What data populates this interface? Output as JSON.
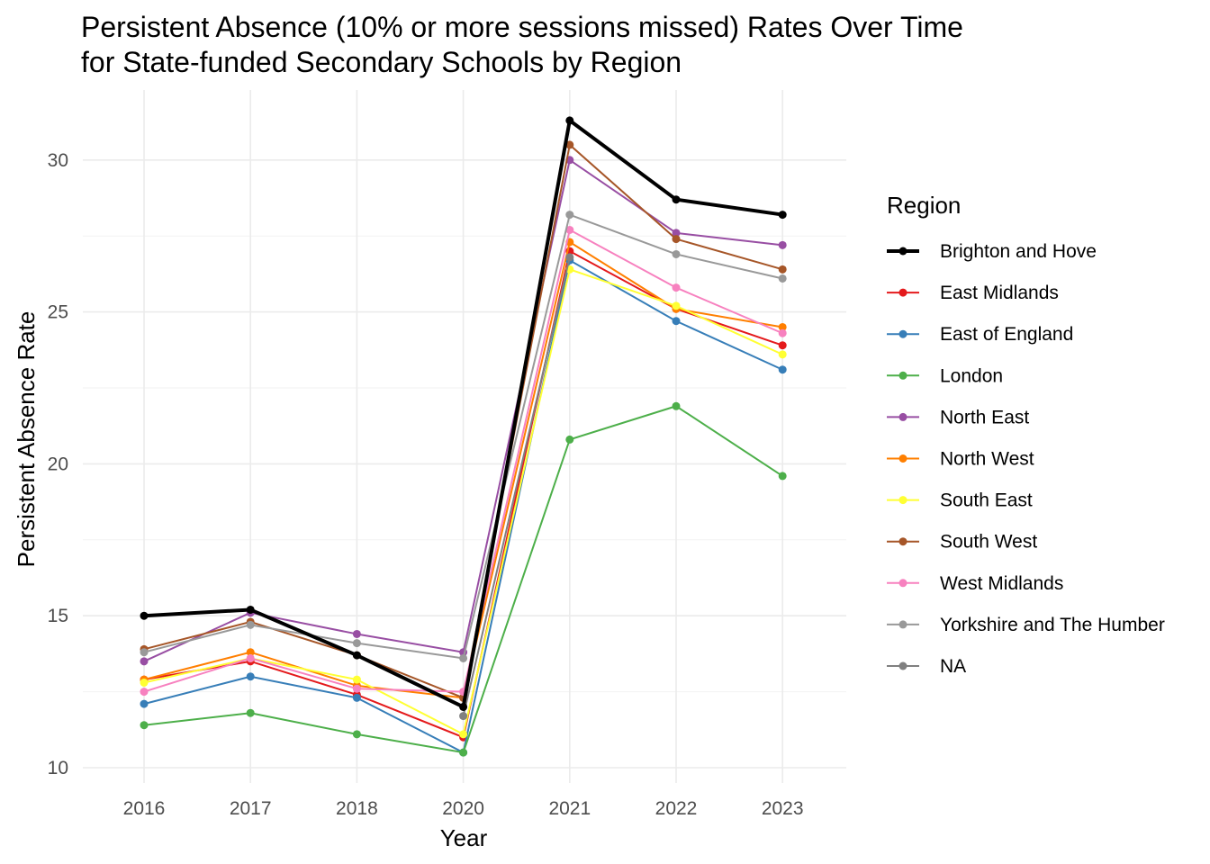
{
  "chart_data": {
    "type": "line",
    "title": [
      "Persistent Absence (10% or more sessions missed) Rates Over Time",
      "for State-funded Secondary Schools by Region"
    ],
    "xlabel": "Year",
    "ylabel": "Persistent Absence Rate",
    "categories": [
      "2016",
      "2017",
      "2018",
      "2020",
      "2021",
      "2022",
      "2023"
    ],
    "yticks": [
      10,
      15,
      20,
      25,
      30
    ],
    "ylim": [
      9.4,
      32.1
    ],
    "grid": true,
    "legend": {
      "title": "Region",
      "position": "right"
    },
    "series": [
      {
        "name": "Brighton and Hove",
        "color": "#000000",
        "bold": true,
        "values": [
          15.0,
          15.2,
          13.7,
          12.0,
          31.3,
          28.7,
          28.2
        ]
      },
      {
        "name": "East Midlands",
        "color": "#e41a1c",
        "bold": false,
        "values": [
          12.9,
          13.5,
          12.4,
          11.0,
          27.0,
          25.1,
          23.9
        ]
      },
      {
        "name": "East of England",
        "color": "#377eb8",
        "bold": false,
        "values": [
          12.1,
          13.0,
          12.3,
          10.5,
          26.7,
          24.7,
          23.1
        ]
      },
      {
        "name": "London",
        "color": "#4daf4a",
        "bold": false,
        "values": [
          11.4,
          11.8,
          11.1,
          10.5,
          20.8,
          21.9,
          19.6
        ]
      },
      {
        "name": "North East",
        "color": "#984ea3",
        "bold": false,
        "values": [
          13.5,
          15.1,
          14.4,
          13.8,
          30.0,
          27.6,
          27.2
        ]
      },
      {
        "name": "North West",
        "color": "#ff7f00",
        "bold": false,
        "values": [
          12.9,
          13.8,
          12.7,
          12.3,
          27.3,
          25.1,
          24.5
        ]
      },
      {
        "name": "South East",
        "color": "#ffff33",
        "bold": false,
        "values": [
          12.8,
          13.6,
          12.9,
          11.1,
          26.4,
          25.2,
          23.6
        ]
      },
      {
        "name": "South West",
        "color": "#a65628",
        "bold": false,
        "values": [
          13.9,
          14.8,
          13.7,
          12.3,
          30.5,
          27.4,
          26.4
        ]
      },
      {
        "name": "West Midlands",
        "color": "#f781bf",
        "bold": false,
        "values": [
          12.5,
          13.6,
          12.6,
          12.5,
          27.7,
          25.8,
          24.3
        ]
      },
      {
        "name": "Yorkshire and The Humber",
        "color": "#999999",
        "bold": false,
        "values": [
          13.8,
          14.7,
          14.1,
          13.6,
          28.2,
          26.9,
          26.1
        ]
      },
      {
        "name": "NA",
        "color": "#808080",
        "bold": false,
        "values": [
          null,
          null,
          null,
          11.7,
          26.8,
          null,
          null
        ]
      }
    ]
  }
}
